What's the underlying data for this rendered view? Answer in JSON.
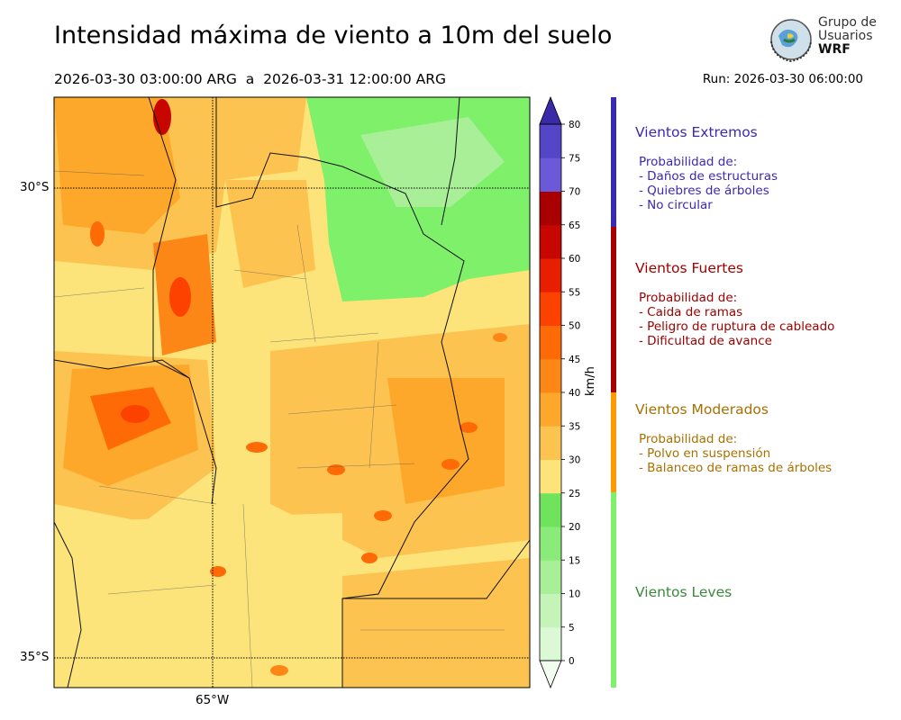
{
  "header": {
    "title": "Intensidad máxima de viento a 10m del suelo",
    "period": "2026-03-30 03:00:00 ARG  a  2026-03-31 12:00:00 ARG",
    "run": "Run: 2026-03-30 06:00:00"
  },
  "logo": {
    "line1": "Grupo de",
    "line2": "Usuarios",
    "line3": "WRF"
  },
  "map": {
    "lat_labels": [
      "30°S",
      "35°S"
    ],
    "lon_labels": [
      "65°W"
    ]
  },
  "colorbar": {
    "unit_label": "km/h",
    "ticks": [
      "0",
      "5",
      "10",
      "15",
      "20",
      "25",
      "30",
      "35",
      "40",
      "45",
      "50",
      "55",
      "60",
      "65",
      "70",
      "75",
      "80"
    ],
    "colors": [
      "#f2fdf0",
      "#dcf9d6",
      "#c4f4b8",
      "#a8ef98",
      "#8aea7a",
      "#6fe35c",
      "#fde47a",
      "#fdc350",
      "#fda82a",
      "#fd8716",
      "#fd6a06",
      "#fd4200",
      "#e81e00",
      "#c80600",
      "#a80000",
      "#6a5ad8",
      "#5546c8",
      "#4436b6",
      "#3a2aa8"
    ]
  },
  "legend": {
    "categories": [
      {
        "title": "Vientos Extremos",
        "color": "#3c2ab0",
        "lines": "Probabilidad de:\n- Daños de estructuras\n- Quiebres de árboles\n- No circular"
      },
      {
        "title": "Vientos Fuertes",
        "color": "#a00000",
        "lines": "Probabilidad de:\n- Caida de ramas\n- Peligro de ruptura de cableado\n- Dificultad de avance"
      },
      {
        "title": "Vientos Moderados",
        "color": "#a87000",
        "lines": "Probabilidad de:\n- Polvo en suspensión\n- Balanceo de ramas de árboles"
      },
      {
        "title": "Vientos Leves",
        "color": "#3a8a3a",
        "lines": ""
      }
    ],
    "bar_colors": [
      "#3a2ab0",
      "#a80000",
      "#fd9a00",
      "#7ef06a"
    ]
  }
}
